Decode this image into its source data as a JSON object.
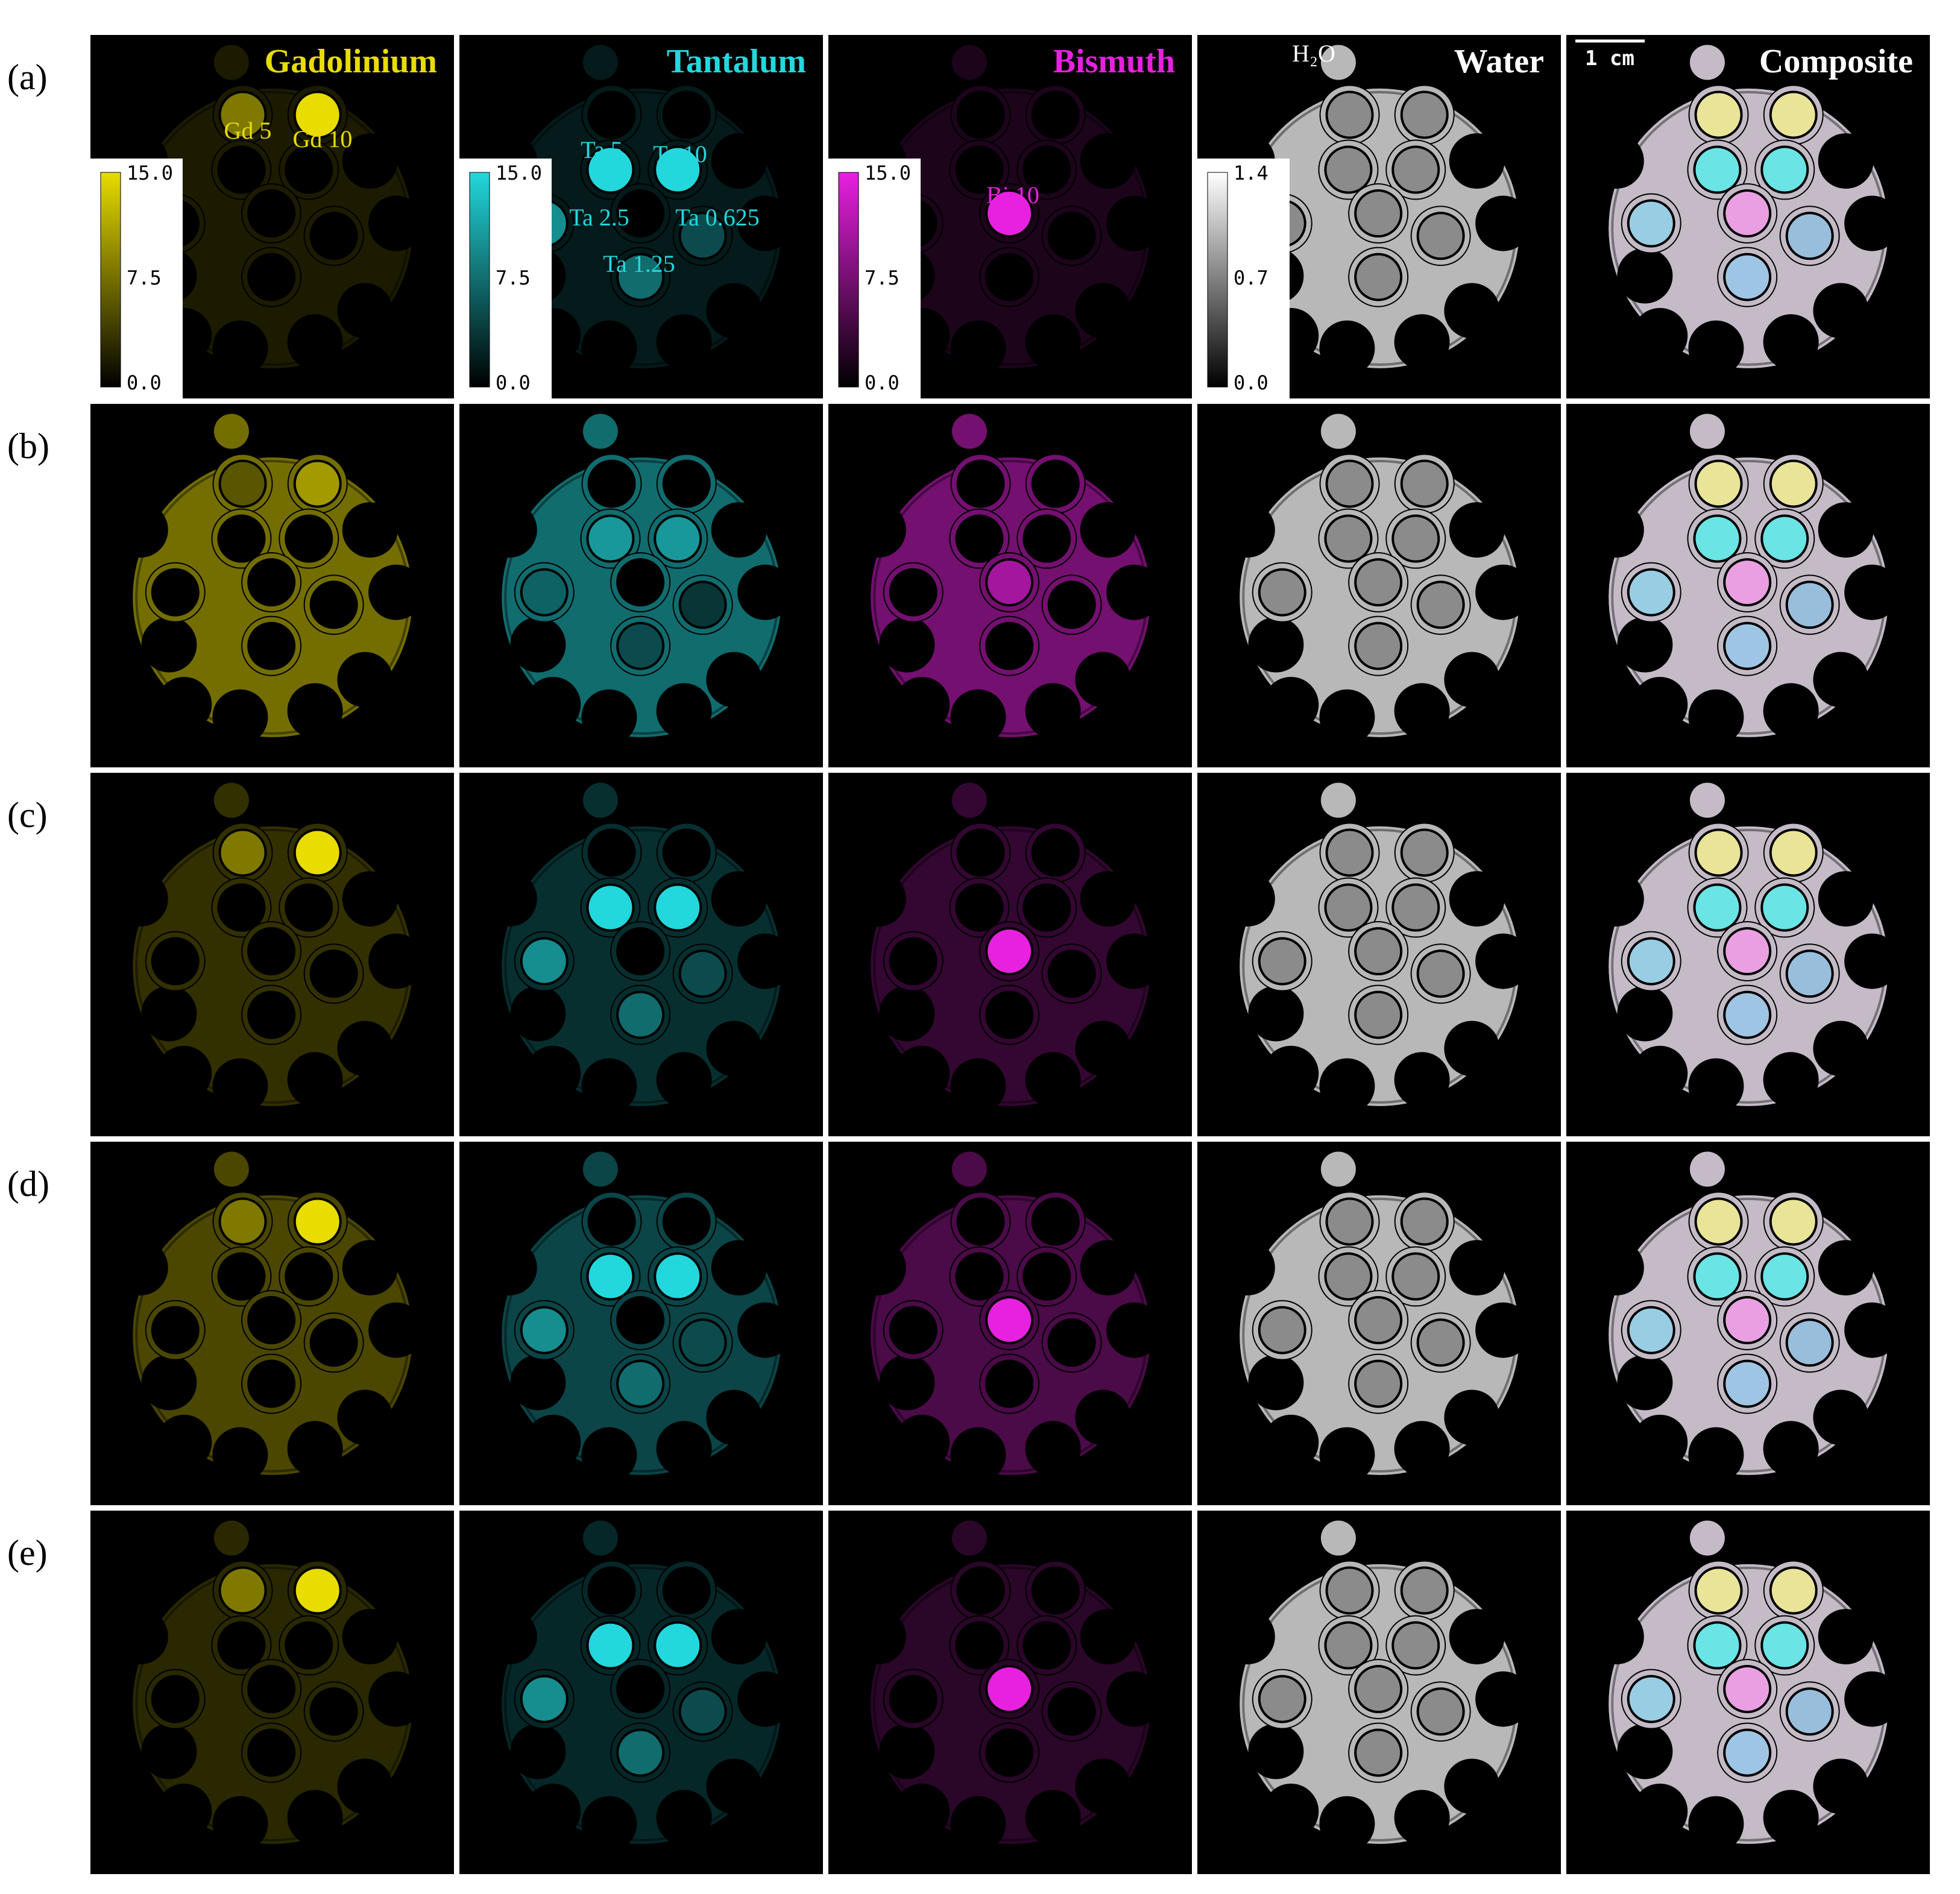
{
  "row_labels": [
    "(a)",
    "(b)",
    "(c)",
    "(d)",
    "(e)"
  ],
  "columns": [
    {
      "title": "Gadolinium",
      "color": "#e8dc00"
    },
    {
      "title": "Tantalum",
      "color": "#22d8dc"
    },
    {
      "title": "Bismuth",
      "color": "#e820e0"
    },
    {
      "title": "Water",
      "color": "#ffffff"
    },
    {
      "title": "Composite",
      "color": "#ffffff"
    }
  ],
  "annotations": {
    "gadolinium": [
      "Gd 5",
      "Gd 10"
    ],
    "tantalum": [
      "Ta 5",
      "Ta 10",
      "Ta 2.5",
      "Ta 0.625",
      "Ta 1.25"
    ],
    "bismuth": [
      "Bi 10"
    ],
    "water": "H₂O"
  },
  "colorbars": [
    {
      "ticks": [
        "15.0",
        "7.5",
        "0.0"
      ]
    },
    {
      "ticks": [
        "15.0",
        "7.5",
        "0.0"
      ]
    },
    {
      "ticks": [
        "15.0",
        "7.5",
        "0.0"
      ]
    },
    {
      "ticks": [
        "1.4",
        "0.7",
        "0.0"
      ]
    }
  ],
  "scale_bar": "1 cm"
}
